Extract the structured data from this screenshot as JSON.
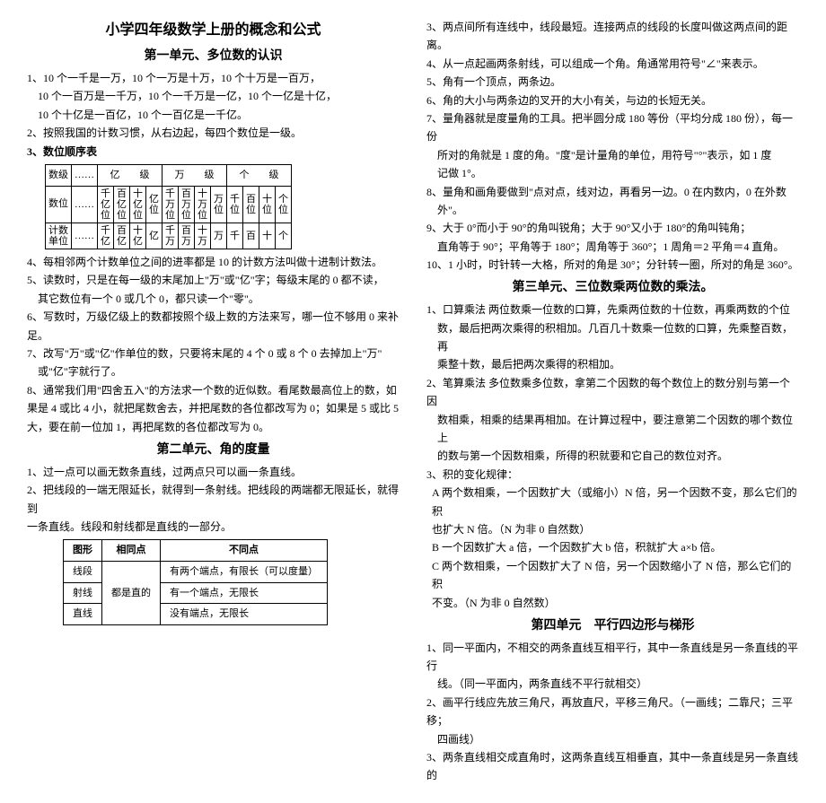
{
  "main_title": "小学四年级数学上册的概念和公式",
  "left": {
    "u1_title": "第一单元、多位数的认识",
    "u1_items": {
      "i1a": "1、10 个一千是一万，10 个一万是十万，10 个十万是一百万，",
      "i1b": "10 个一百万是一千万，10 个一千万是一亿，10 个一亿是十亿，",
      "i1c": "10 个十亿是一百亿，10 个一百亿是一千亿。",
      "i2": "2、按照我国的计数习惯，从右边起，每四个数位是一级。",
      "i3": "3、数位顺序表",
      "i4": "4、每相邻两个计数单位之间的进率都是 10 的计数方法叫做十进制计数法。",
      "i5a": "5、读数时，只是在每一级的末尾加上\"万\"或\"亿\"字；每级末尾的 0 都不读，",
      "i5b": "其它数位有一个 0 或几个 0，都只读一个\"零\"。",
      "i6": "6、写数时，万级亿级上的数都按照个级上数的方法来写，哪一位不够用 0 来补足。",
      "i7a": "7、改写\"万\"或\"亿\"作单位的数，只要将末尾的 4 个 0 或 8 个 0 去掉加上\"万\"",
      "i7b": "或\"亿\"字就行了。",
      "i8a": "8、通常我们用\"四舍五入\"的方法求一个数的近似数。看尾数最高位上的数，如",
      "i8b": "果是 4 或比 4 小，就把尾数舍去，并把尾数的各位都改写为 0；如果是 5 或比 5",
      "i8c": "大，要在前一位加 1，再把尾数的各位都改写为 0。"
    },
    "digit_table": {
      "row1": [
        "数级",
        "……",
        "亿　　级",
        "万　　级",
        "个　　级"
      ],
      "row2_label": "数位",
      "row2_cells": [
        "……",
        "千亿位",
        "百亿位",
        "十亿位",
        "亿位",
        "千万位",
        "百万位",
        "十万位",
        "万位",
        "千位",
        "百位",
        "十位",
        "个位"
      ],
      "row3_label": "计数单位",
      "row3_cells": [
        "……",
        "千亿",
        "百亿",
        "十亿",
        "亿",
        "千万",
        "百万",
        "十万",
        "万",
        "千",
        "百",
        "十",
        "个"
      ]
    },
    "u2_title": "第二单元、角的度量",
    "u2_items": {
      "i1": "1、过一点可以画无数条直线，过两点只可以画一条直线。",
      "i2a": "2、把线段的一端无限延长，就得到一条射线。把线段的两端都无限延长，就得到",
      "i2b": "一条直线。线段和射线都是直线的一部分。"
    },
    "shape_table": {
      "h1": "图形",
      "h2": "相同点",
      "h3": "不同点",
      "r1c1": "线段",
      "r1c3": "有两个端点，有限长（可以度量）",
      "r2c1": "射线",
      "r2c2": "都是直的",
      "r2c3": "有一个端点，无限长",
      "r3c1": "直线",
      "r3c3": "没有端点，无限长"
    }
  },
  "right": {
    "pre_u3": {
      "i3": "3、两点间所有连线中，线段最短。连接两点的线段的长度叫做这两点间的距离。",
      "i4": "4、从一点起画两条射线，可以组成一个角。角通常用符号\"∠\"来表示。",
      "i5": "5、角有一个顶点，两条边。",
      "i6": "6、角的大小与两条边的叉开的大小有关，与边的长短无关。",
      "i7a": "7、量角器就是度量角的工具。把半圆分成 180 等份（平均分成 180 份），每一份",
      "i7b": "所对的角就是 1 度的角。\"度\"是计量角的单位，用符号\"°\"表示，如 1 度",
      "i7c": "记做 1°。",
      "i8a": "8、量角和画角要做到\"点对点，线对边，再看另一边。0 在内数内，0 在外数",
      "i8b": "外\"。",
      "i9a": "9、大于 0°而小于 90°的角叫锐角；大于 90°又小于 180°的角叫钝角；",
      "i9b": "直角等于 90°；平角等于 180°；周角等于 360°；1 周角＝2 平角＝4 直角。",
      "i10": "10、1 小时，时针转一大格，所对的角是 30°；分针转一圈，所对的角是 360°。"
    },
    "u3_title": "第三单元、三位数乘两位数的乘法。",
    "u3_items": {
      "i1a": "1、口算乘法 两位数乘一位数的口算，先乘两位数的十位数，再乘两数的个位",
      "i1b": "数，最后把两次乘得的积相加。几百几十数乘一位数的口算，先乘整百数，再",
      "i1c": "乘整十数，最后把两次乘得的积相加。",
      "i2a": "2、笔算乘法 多位数乘多位数，拿第二个因数的每个数位上的数分别与第一个因",
      "i2b": "数相乘，相乘的结果再相加。在计算过程中，要注意第二个因数的哪个数位上",
      "i2c": "的数与第一个因数相乘，所得的积就要和它自己的数位对齐。",
      "i3": "3、积的变化规律：",
      "i3Aa": "A 两个数相乘，一个因数扩大（或缩小）N 倍，另一个因数不变，那么它们的积",
      "i3Ab": "也扩大 N 倍。（N 为非 0 自然数）",
      "i3B": "B 一个因数扩大 a 倍，一个因数扩大 b 倍，积就扩大 a×b 倍。",
      "i3Ca": "C 两个数相乘，一个因数扩大了 N 倍，另一个因数缩小了 N 倍，那么它们的积",
      "i3Cb": "不变。（N 为非 0 自然数）"
    },
    "u4_title": "第四单元　平行四边形与梯形",
    "u4_items": {
      "i1a": "1、同一平面内，不相交的两条直线互相平行，其中一条直线是另一条直线的平行",
      "i1b": "线。（同一平面内，两条直线不平行就相交）",
      "i2a": "2、画平行线应先放三角尺，再放直尺，平移三角尺。（一画线；二靠尺；三平移；",
      "i2b": "四画线）",
      "i3": "3、两条直线相交成直角时，这两条直线互相垂直，其中一条直线是另一条直线的"
    }
  }
}
